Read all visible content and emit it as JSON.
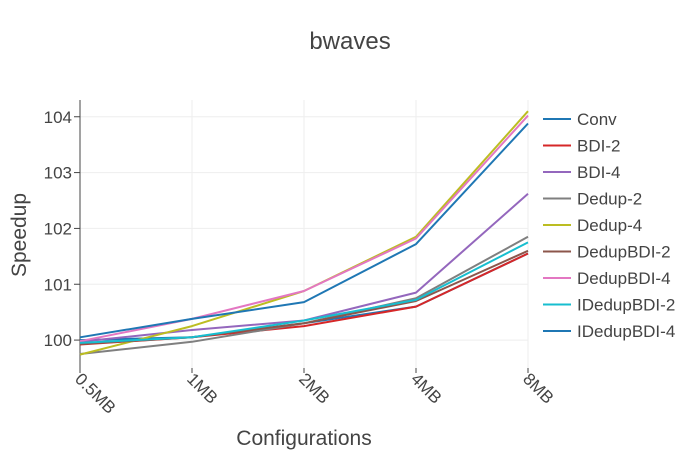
{
  "chart_data": {
    "type": "line",
    "title": "bwaves",
    "xlabel": "Configurations",
    "ylabel": "Speedup",
    "categories": [
      "0.5MB",
      "1MB",
      "2MB",
      "4MB",
      "8MB"
    ],
    "ylim": [
      99.5,
      104.3
    ],
    "yticks": [
      100,
      101,
      102,
      103,
      104
    ],
    "grid": true,
    "legend_position": "right",
    "series": [
      {
        "name": "Conv",
        "color": "#1f77b4",
        "values": [
          100.0,
          100.05,
          100.3,
          100.6,
          101.55
        ]
      },
      {
        "name": "BDI-2",
        "color": "#d62728",
        "values": [
          99.92,
          100.05,
          100.25,
          100.6,
          101.55
        ]
      },
      {
        "name": "BDI-4",
        "color": "#9467bd",
        "values": [
          99.97,
          100.18,
          100.35,
          100.85,
          102.62
        ]
      },
      {
        "name": "Dedup-2",
        "color": "#7f7f7f",
        "values": [
          99.75,
          99.97,
          100.3,
          100.75,
          101.85
        ]
      },
      {
        "name": "Dedup-4",
        "color": "#bcbd22",
        "values": [
          99.74,
          100.25,
          100.88,
          101.85,
          104.1
        ]
      },
      {
        "name": "DedupBDI-2",
        "color": "#8c564b",
        "values": [
          99.93,
          100.05,
          100.3,
          100.7,
          101.6
        ]
      },
      {
        "name": "DedupBDI-4",
        "color": "#e377c2",
        "values": [
          99.98,
          100.38,
          100.88,
          101.82,
          104.02
        ]
      },
      {
        "name": "IDedupBDI-2",
        "color": "#17becf",
        "values": [
          99.95,
          100.05,
          100.35,
          100.72,
          101.75
        ]
      },
      {
        "name": "IDedupBDI-4",
        "color": "#1f77b4",
        "values": [
          100.05,
          100.38,
          100.68,
          101.72,
          103.88
        ]
      }
    ]
  }
}
